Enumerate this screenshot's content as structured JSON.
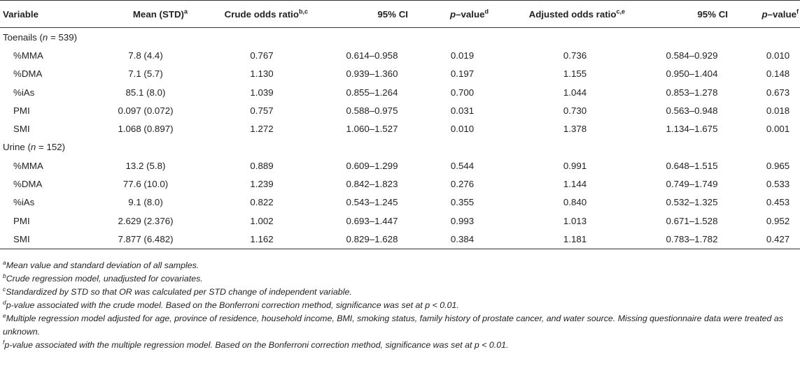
{
  "headers": {
    "variable": "Variable",
    "mean": "Mean (STD)",
    "mean_sup": "a",
    "crude": "Crude odds ratio",
    "crude_sup": "b,c",
    "ci1": "95% CI",
    "p1_italic": "p",
    "p1_rest": "–value",
    "p1_sup": "d",
    "adjusted": "Adjusted odds ratio",
    "adjusted_sup": "c,e",
    "ci2": "95% CI",
    "p2_italic": "p",
    "p2_rest": "–value",
    "p2_sup": "f"
  },
  "sections": [
    {
      "label_pre": "Toenails (",
      "label_n": "n",
      "label_post": " = 539)",
      "rows": [
        {
          "variable": "%MMA",
          "mean": "7.8 (4.4)",
          "crude": "0.767",
          "ci1": "0.614–0.958",
          "p1": "0.019",
          "adjusted": "0.736",
          "ci2": "0.584–0.929",
          "p2": "0.010"
        },
        {
          "variable": "%DMA",
          "mean": "7.1 (5.7)",
          "crude": "1.130",
          "ci1": "0.939–1.360",
          "p1": "0.197",
          "adjusted": "1.155",
          "ci2": "0.950–1.404",
          "p2": "0.148"
        },
        {
          "variable": "%iAs",
          "mean": "85.1 (8.0)",
          "crude": "1.039",
          "ci1": "0.855–1.264",
          "p1": "0.700",
          "adjusted": "1.044",
          "ci2": "0.853–1.278",
          "p2": "0.673"
        },
        {
          "variable": "PMI",
          "mean": "0.097 (0.072)",
          "crude": "0.757",
          "ci1": "0.588–0.975",
          "p1": "0.031",
          "adjusted": "0.730",
          "ci2": "0.563–0.948",
          "p2": "0.018"
        },
        {
          "variable": "SMI",
          "mean": "1.068 (0.897)",
          "crude": "1.272",
          "ci1": "1.060–1.527",
          "p1": "0.010",
          "adjusted": "1.378",
          "ci2": "1.134–1.675",
          "p2": "0.001"
        }
      ]
    },
    {
      "label_pre": "Urine (",
      "label_n": "n",
      "label_post": " = 152)",
      "rows": [
        {
          "variable": "%MMA",
          "mean": "13.2 (5.8)",
          "crude": "0.889",
          "ci1": "0.609–1.299",
          "p1": "0.544",
          "adjusted": "0.991",
          "ci2": "0.648–1.515",
          "p2": "0.965"
        },
        {
          "variable": "%DMA",
          "mean": "77.6 (10.0)",
          "crude": "1.239",
          "ci1": "0.842–1.823",
          "p1": "0.276",
          "adjusted": "1.144",
          "ci2": "0.749–1.749",
          "p2": "0.533"
        },
        {
          "variable": "%iAs",
          "mean": "9.1 (8.0)",
          "crude": "0.822",
          "ci1": "0.543–1.245",
          "p1": "0.355",
          "adjusted": "0.840",
          "ci2": "0.532–1.325",
          "p2": "0.453"
        },
        {
          "variable": "PMI",
          "mean": "2.629 (2.376)",
          "crude": "1.002",
          "ci1": "0.693–1.447",
          "p1": "0.993",
          "adjusted": "1.013",
          "ci2": "0.671–1.528",
          "p2": "0.952"
        },
        {
          "variable": "SMI",
          "mean": "7.877 (6.482)",
          "crude": "1.162",
          "ci1": "0.829–1.628",
          "p1": "0.384",
          "adjusted": "1.181",
          "ci2": "0.783–1.782",
          "p2": "0.427"
        }
      ]
    }
  ],
  "footnotes": [
    {
      "sup": "a",
      "text": "Mean value and standard deviation of all samples."
    },
    {
      "sup": "b",
      "text": "Crude regression model, unadjusted for covariates."
    },
    {
      "sup": "c",
      "text": "Standardized by STD so that OR was calculated per STD change of independent variable."
    },
    {
      "sup": "d",
      "text": "p-value associated with the crude model. Based on the Bonferroni correction method, significance was set at p < 0.01."
    },
    {
      "sup": "e",
      "text": "Multiple regression model adjusted for age, province of residence, household income, BMI, smoking status, family history of prostate cancer, and water source. Missing questionnaire data were treated as unknown."
    },
    {
      "sup": "f",
      "text": "p-value associated with the multiple regression model. Based on the Bonferroni correction method, significance was set at p < 0.01."
    }
  ]
}
